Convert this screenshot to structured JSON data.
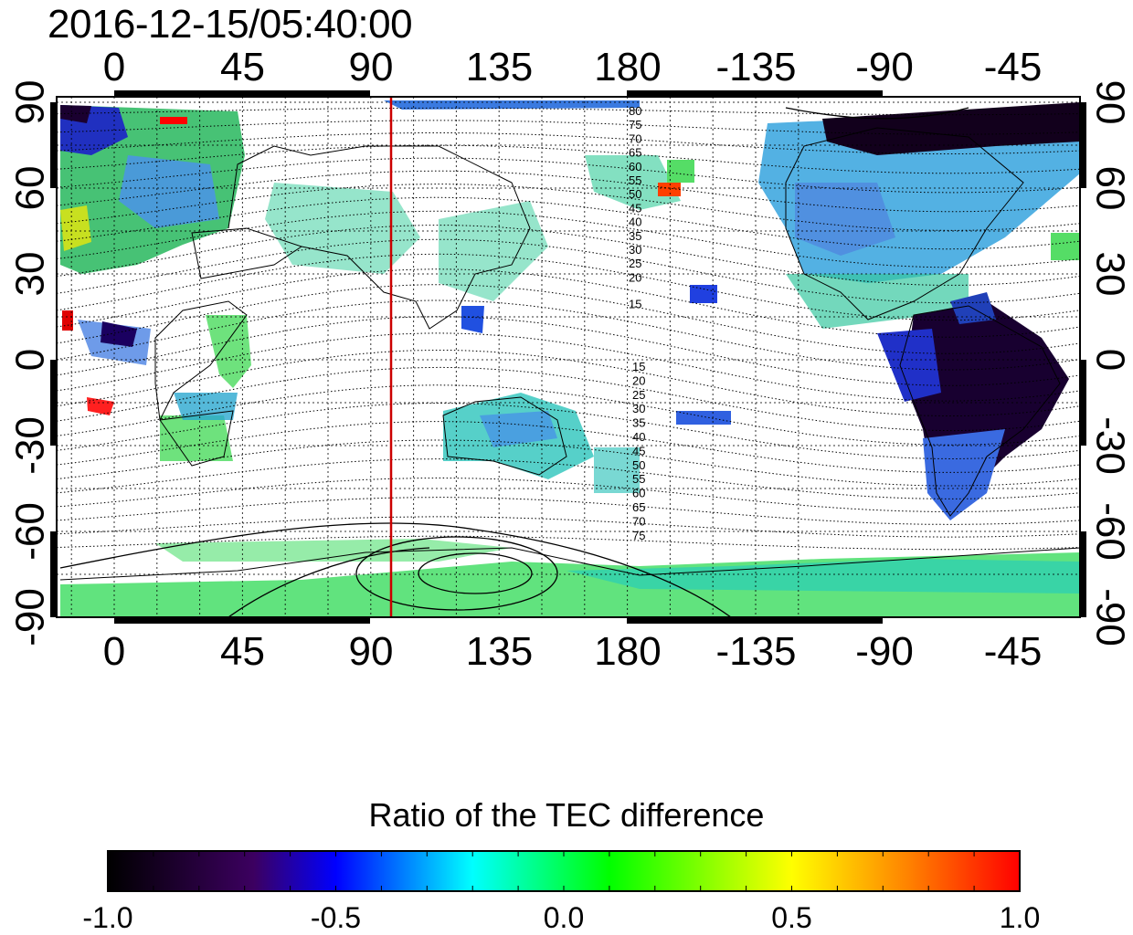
{
  "map": {
    "timestamp": "2016-12-15/05:40:00",
    "projection": "cylindrical, central meridian 110",
    "lon_ticks": [
      "0",
      "45",
      "90",
      "135",
      "180",
      "-135",
      "-90",
      "-45"
    ],
    "lat_ticks": [
      "90",
      "60",
      "30",
      "0",
      "-30",
      "-60",
      "-90"
    ],
    "contour_labels_north": [
      "80",
      "75",
      "70",
      "65",
      "60",
      "55",
      "50",
      "45",
      "40",
      "35",
      "30",
      "25",
      "20",
      "15"
    ],
    "contour_labels_south": [
      "15",
      "20",
      "25",
      "30",
      "35",
      "40",
      "45",
      "50",
      "55",
      "60",
      "65",
      "70",
      "75"
    ],
    "reference_line_color": "#cc0000",
    "gridlines": "dotted"
  },
  "colorbar": {
    "title": "Ratio of the TEC difference",
    "tick_labels": [
      "-1.0",
      "-0.5",
      "0.0",
      "0.5",
      "1.0"
    ],
    "range": [
      -1.0,
      1.0
    ],
    "colors": [
      "#000000",
      "#3c0060",
      "#0000ff",
      "#00ffff",
      "#00ff00",
      "#ffff00",
      "#ff0000"
    ]
  }
}
